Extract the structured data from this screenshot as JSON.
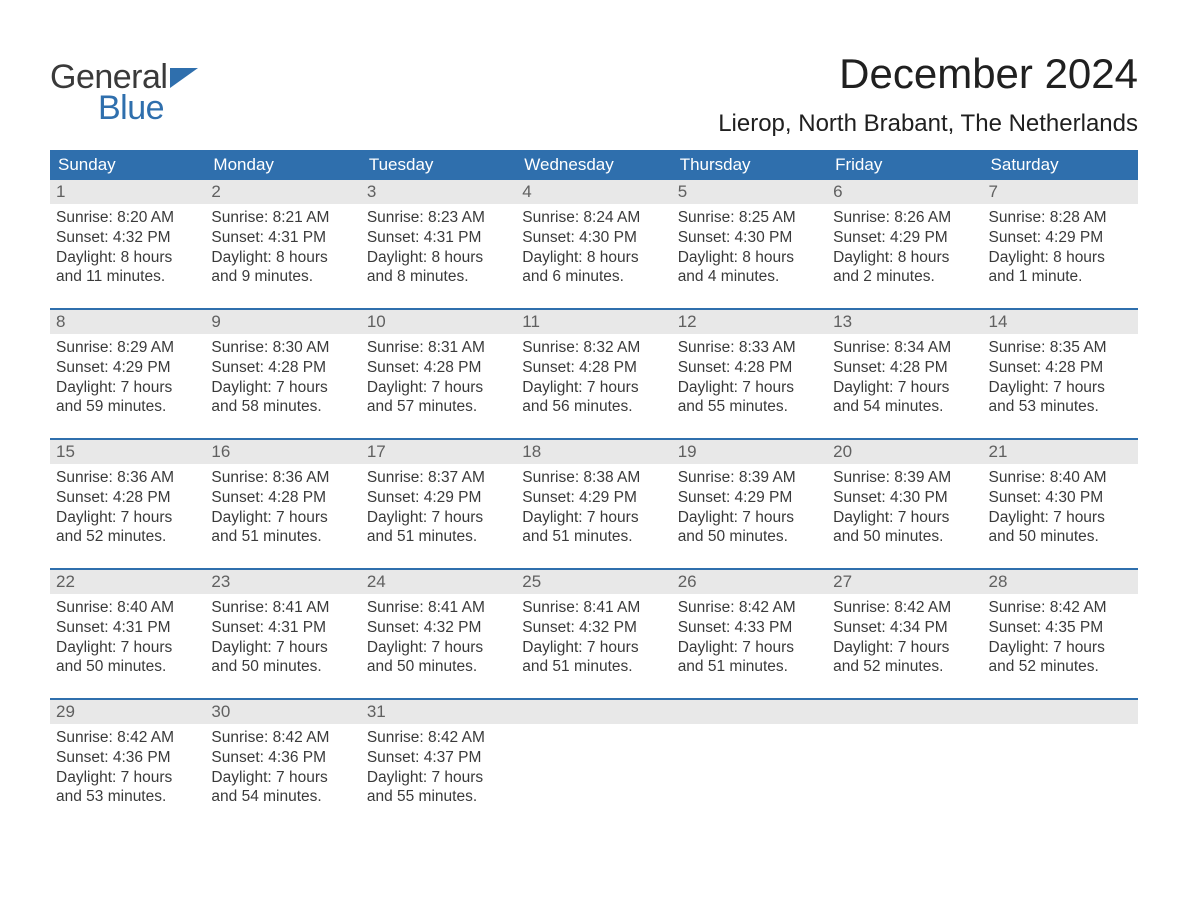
{
  "brand": {
    "line1": "General",
    "line2": "Blue",
    "accent_color": "#2f6fad"
  },
  "title": "December 2024",
  "location": "Lierop, North Brabant, The Netherlands",
  "colors": {
    "header_bg": "#2f6fad",
    "header_text": "#ffffff",
    "daynum_bg": "#e8e8e8",
    "daynum_text": "#606060",
    "body_text": "#3a3a3a",
    "page_bg": "#ffffff",
    "week_divider": "#2f6fad"
  },
  "typography": {
    "title_fontsize": 42,
    "location_fontsize": 24,
    "dow_fontsize": 17,
    "daynum_fontsize": 17,
    "body_fontsize": 15.5
  },
  "days_of_week": [
    "Sunday",
    "Monday",
    "Tuesday",
    "Wednesday",
    "Thursday",
    "Friday",
    "Saturday"
  ],
  "weeks": [
    [
      {
        "n": "1",
        "sunrise": "8:20 AM",
        "sunset": "4:32 PM",
        "dl1": "Daylight: 8 hours",
        "dl2": "and 11 minutes."
      },
      {
        "n": "2",
        "sunrise": "8:21 AM",
        "sunset": "4:31 PM",
        "dl1": "Daylight: 8 hours",
        "dl2": "and 9 minutes."
      },
      {
        "n": "3",
        "sunrise": "8:23 AM",
        "sunset": "4:31 PM",
        "dl1": "Daylight: 8 hours",
        "dl2": "and 8 minutes."
      },
      {
        "n": "4",
        "sunrise": "8:24 AM",
        "sunset": "4:30 PM",
        "dl1": "Daylight: 8 hours",
        "dl2": "and 6 minutes."
      },
      {
        "n": "5",
        "sunrise": "8:25 AM",
        "sunset": "4:30 PM",
        "dl1": "Daylight: 8 hours",
        "dl2": "and 4 minutes."
      },
      {
        "n": "6",
        "sunrise": "8:26 AM",
        "sunset": "4:29 PM",
        "dl1": "Daylight: 8 hours",
        "dl2": "and 2 minutes."
      },
      {
        "n": "7",
        "sunrise": "8:28 AM",
        "sunset": "4:29 PM",
        "dl1": "Daylight: 8 hours",
        "dl2": "and 1 minute."
      }
    ],
    [
      {
        "n": "8",
        "sunrise": "8:29 AM",
        "sunset": "4:29 PM",
        "dl1": "Daylight: 7 hours",
        "dl2": "and 59 minutes."
      },
      {
        "n": "9",
        "sunrise": "8:30 AM",
        "sunset": "4:28 PM",
        "dl1": "Daylight: 7 hours",
        "dl2": "and 58 minutes."
      },
      {
        "n": "10",
        "sunrise": "8:31 AM",
        "sunset": "4:28 PM",
        "dl1": "Daylight: 7 hours",
        "dl2": "and 57 minutes."
      },
      {
        "n": "11",
        "sunrise": "8:32 AM",
        "sunset": "4:28 PM",
        "dl1": "Daylight: 7 hours",
        "dl2": "and 56 minutes."
      },
      {
        "n": "12",
        "sunrise": "8:33 AM",
        "sunset": "4:28 PM",
        "dl1": "Daylight: 7 hours",
        "dl2": "and 55 minutes."
      },
      {
        "n": "13",
        "sunrise": "8:34 AM",
        "sunset": "4:28 PM",
        "dl1": "Daylight: 7 hours",
        "dl2": "and 54 minutes."
      },
      {
        "n": "14",
        "sunrise": "8:35 AM",
        "sunset": "4:28 PM",
        "dl1": "Daylight: 7 hours",
        "dl2": "and 53 minutes."
      }
    ],
    [
      {
        "n": "15",
        "sunrise": "8:36 AM",
        "sunset": "4:28 PM",
        "dl1": "Daylight: 7 hours",
        "dl2": "and 52 minutes."
      },
      {
        "n": "16",
        "sunrise": "8:36 AM",
        "sunset": "4:28 PM",
        "dl1": "Daylight: 7 hours",
        "dl2": "and 51 minutes."
      },
      {
        "n": "17",
        "sunrise": "8:37 AM",
        "sunset": "4:29 PM",
        "dl1": "Daylight: 7 hours",
        "dl2": "and 51 minutes."
      },
      {
        "n": "18",
        "sunrise": "8:38 AM",
        "sunset": "4:29 PM",
        "dl1": "Daylight: 7 hours",
        "dl2": "and 51 minutes."
      },
      {
        "n": "19",
        "sunrise": "8:39 AM",
        "sunset": "4:29 PM",
        "dl1": "Daylight: 7 hours",
        "dl2": "and 50 minutes."
      },
      {
        "n": "20",
        "sunrise": "8:39 AM",
        "sunset": "4:30 PM",
        "dl1": "Daylight: 7 hours",
        "dl2": "and 50 minutes."
      },
      {
        "n": "21",
        "sunrise": "8:40 AM",
        "sunset": "4:30 PM",
        "dl1": "Daylight: 7 hours",
        "dl2": "and 50 minutes."
      }
    ],
    [
      {
        "n": "22",
        "sunrise": "8:40 AM",
        "sunset": "4:31 PM",
        "dl1": "Daylight: 7 hours",
        "dl2": "and 50 minutes."
      },
      {
        "n": "23",
        "sunrise": "8:41 AM",
        "sunset": "4:31 PM",
        "dl1": "Daylight: 7 hours",
        "dl2": "and 50 minutes."
      },
      {
        "n": "24",
        "sunrise": "8:41 AM",
        "sunset": "4:32 PM",
        "dl1": "Daylight: 7 hours",
        "dl2": "and 50 minutes."
      },
      {
        "n": "25",
        "sunrise": "8:41 AM",
        "sunset": "4:32 PM",
        "dl1": "Daylight: 7 hours",
        "dl2": "and 51 minutes."
      },
      {
        "n": "26",
        "sunrise": "8:42 AM",
        "sunset": "4:33 PM",
        "dl1": "Daylight: 7 hours",
        "dl2": "and 51 minutes."
      },
      {
        "n": "27",
        "sunrise": "8:42 AM",
        "sunset": "4:34 PM",
        "dl1": "Daylight: 7 hours",
        "dl2": "and 52 minutes."
      },
      {
        "n": "28",
        "sunrise": "8:42 AM",
        "sunset": "4:35 PM",
        "dl1": "Daylight: 7 hours",
        "dl2": "and 52 minutes."
      }
    ],
    [
      {
        "n": "29",
        "sunrise": "8:42 AM",
        "sunset": "4:36 PM",
        "dl1": "Daylight: 7 hours",
        "dl2": "and 53 minutes."
      },
      {
        "n": "30",
        "sunrise": "8:42 AM",
        "sunset": "4:36 PM",
        "dl1": "Daylight: 7 hours",
        "dl2": "and 54 minutes."
      },
      {
        "n": "31",
        "sunrise": "8:42 AM",
        "sunset": "4:37 PM",
        "dl1": "Daylight: 7 hours",
        "dl2": "and 55 minutes."
      },
      null,
      null,
      null,
      null
    ]
  ],
  "labels": {
    "sunrise_prefix": "Sunrise: ",
    "sunset_prefix": "Sunset: "
  }
}
